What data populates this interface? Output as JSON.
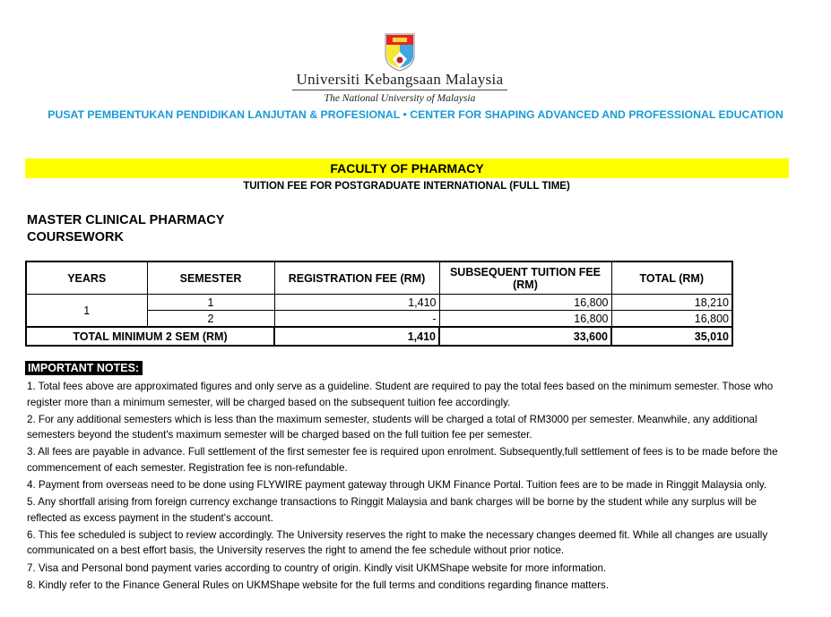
{
  "header": {
    "logo_text": "Universiti Kebangsaan Malaysia",
    "tagline": "The National University of Malaysia",
    "center": "PUSAT PEMBENTUKAN PENDIDIKAN LANJUTAN & PROFESIONAL • CENTER FOR SHAPING ADVANCED AND PROFESSIONAL EDUCATION",
    "center_color": "#1a9ad6"
  },
  "faculty": "FACULTY OF PHARMACY",
  "subtitle": "TUITION FEE FOR POSTGRADUATE INTERNATIONAL (FULL TIME)",
  "programme": {
    "name": "MASTER CLINICAL PHARMACY",
    "mode": "COURSEWORK"
  },
  "table": {
    "headers": [
      "YEARS",
      "SEMESTER",
      "REGISTRATION FEE (RM)",
      "SUBSEQUENT TUITION FEE (RM)",
      "TOTAL  (RM)"
    ],
    "year": "1",
    "rows": [
      {
        "semester": "1",
        "registration": "1,410",
        "tuition": "16,800",
        "total": "18,210"
      },
      {
        "semester": "2",
        "registration": "-",
        "tuition": "16,800",
        "total": "16,800"
      }
    ],
    "total_row": {
      "label": "TOTAL MINIMUM 2 SEM (RM)",
      "registration": "1,410",
      "tuition": "33,600",
      "total": "35,010"
    }
  },
  "notes": {
    "heading": "IMPORTANT NOTES:",
    "items": [
      "1. Total fees above are approximated figures and only serve as a guideline. Student are required to pay the total fees based on the minimum semester. Those who register more than a minimum semester, will be charged based on the subsequent tuition fee accordingly.",
      "2. For any additional semesters which is less than the maximum semester, students will be charged a total of RM3000 per semester. Meanwhile, any additional semesters beyond the student's maximum semester will be charged based on the full tuition fee per semester.",
      "3. All fees are payable in advance. Full settlement of the first semester fee is required upon enrolment. Subsequently,full settlement of fees is to be made before the commencement of each semester. Registration fee is non-refundable.",
      "4. Payment from overseas need to be done using FLYWIRE payment gateway through UKM Finance Portal. Tuition fees are to be made in Ringgit Malaysia only.",
      "5. Any shortfall arising from foreign currency exchange transactions to Ringgit Malaysia and bank charges will be borne by the student while any surplus will be reflected as excess payment in the student's account.",
      "6.  This fee scheduled is subject to review accordingly. The University reserves the right to make the necessary changes deemed fit. While all changes are usually communicated on a best effort basis, the University reserves the right to amend the fee schedule without prior notice.",
      "7. Visa and Personal bond payment varies according to country of origin. Kindly visit UKMShape website for more information.",
      "8. Kindly refer to the Finance General Rules on UKMShape website for the full terms and conditions regarding finance matters."
    ]
  }
}
